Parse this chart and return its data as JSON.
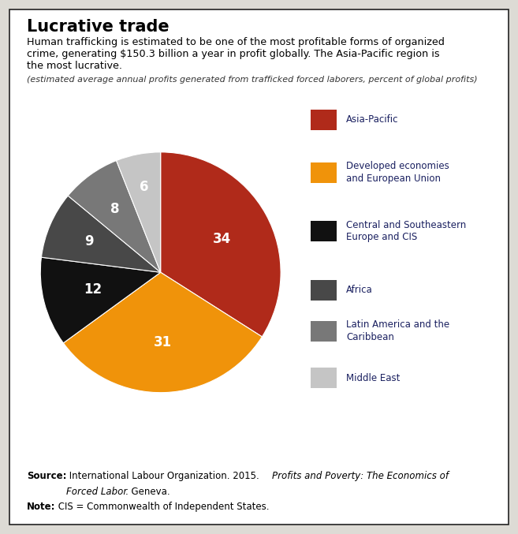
{
  "title": "Lucrative trade",
  "subtitle_line1": "Human trafficking is estimated to be one of the most profitable forms of organized",
  "subtitle_line2": "crime, generating $150.3 billion a year in profit globally. The Asia-Pacific region is",
  "subtitle_line3": "the most lucrative.",
  "caption": "(estimated average annual profits generated from trafficked forced laborers, percent of global profits)",
  "slices": [
    34,
    31,
    12,
    9,
    8,
    6
  ],
  "labels": [
    "Asia-Pacific",
    "Developed economies\nand European Union",
    "Central and Southeastern\nEurope and CIS",
    "Africa",
    "Latin America and the\nCaribbean",
    "Middle East"
  ],
  "colors": [
    "#b02a1a",
    "#f0930a",
    "#111111",
    "#484848",
    "#787878",
    "#c5c5c5"
  ],
  "slice_label_colors": [
    "white",
    "white",
    "white",
    "white",
    "white",
    "white"
  ],
  "text_color": "#1a2060",
  "bg_color": "#dddbd5",
  "inner_bg": "#e8e6e1",
  "border_color": "#222222",
  "source_bold": "Source:",
  "source_regular": " International Labour Organization. 2015. ",
  "source_italic": "Profits and Poverty: The Economics of",
  "source_italic2": "Forced Labor",
  "source_end": ". Geneva.",
  "note_bold": "Note:",
  "note_regular": " CIS = Commonwealth of Independent States."
}
